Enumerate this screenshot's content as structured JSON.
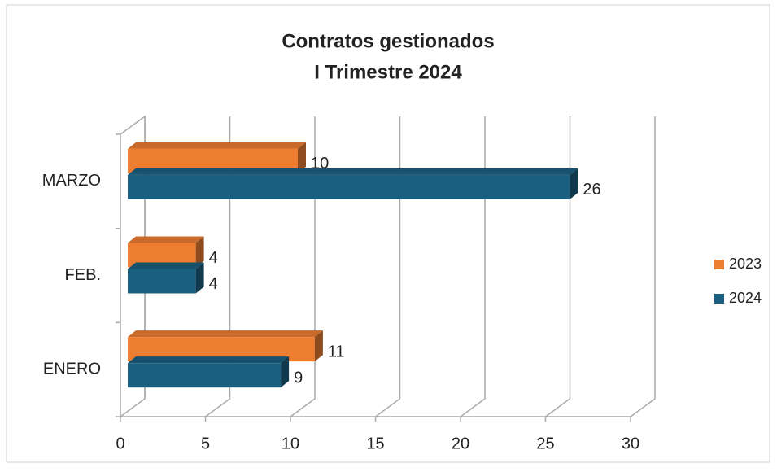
{
  "chart_data": {
    "type": "bar3d_horizontal",
    "title": [
      "Contratos gestionados",
      "I Trimestre 2024"
    ],
    "categories": [
      "ENERO",
      "FEB.",
      "MARZO"
    ],
    "series": [
      {
        "name": "2023",
        "color": "#ED7D31",
        "values": [
          11,
          4,
          10
        ]
      },
      {
        "name": "2024",
        "color": "#1B5F80",
        "values": [
          9,
          4,
          26
        ]
      }
    ],
    "xlim": [
      0,
      30
    ],
    "xticks": [
      0,
      5,
      10,
      15,
      20,
      25,
      30
    ],
    "grid": true,
    "legend": "right"
  }
}
